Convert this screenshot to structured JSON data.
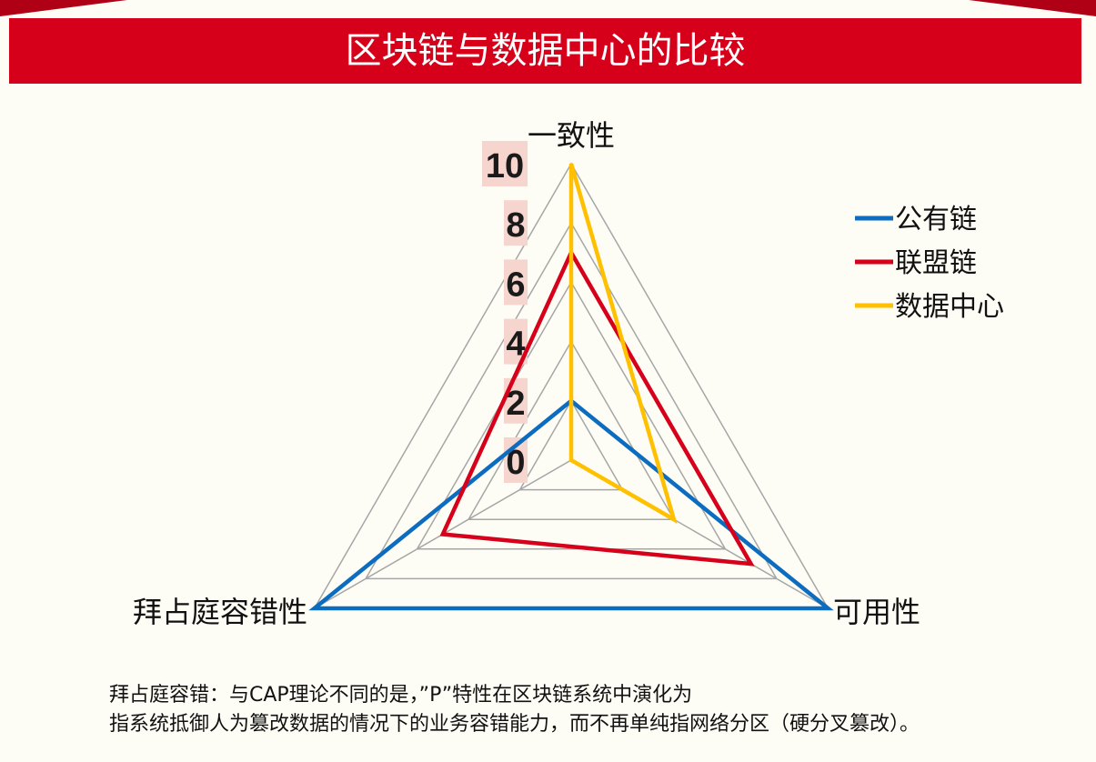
{
  "title": "区块链与数据中心的比较",
  "chart_data": {
    "type": "radar",
    "axes": [
      "一致性",
      "可用性",
      "拜占庭容错性"
    ],
    "scale": {
      "min": 0,
      "max": 10,
      "step": 2
    },
    "tick_labels": [
      "0",
      "2",
      "4",
      "6",
      "8",
      "10"
    ],
    "grid": true,
    "legend_position": "right",
    "series": [
      {
        "name": "公有链",
        "color": "#0b6cc0",
        "values": [
          2,
          10,
          10
        ]
      },
      {
        "name": "联盟链",
        "color": "#d7001b",
        "values": [
          7,
          7,
          5
        ]
      },
      {
        "name": "数据中心",
        "color": "#ffc000",
        "values": [
          10,
          4,
          0
        ]
      }
    ]
  },
  "caption": {
    "line1": "拜占庭容错：与CAP理论不同的是，”P”特性在区块链系统中演化为",
    "line2": "指系统抵御人为篡改数据的情况下的业务容错能力，而不再单纯指网络分区（硬分叉篡改）。"
  }
}
